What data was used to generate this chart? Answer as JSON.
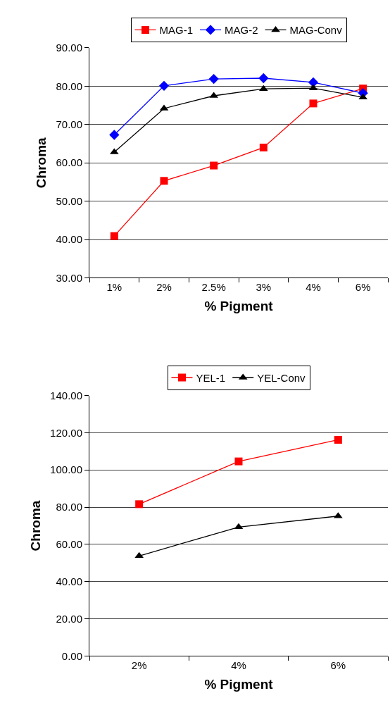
{
  "chart_data": [
    {
      "type": "line",
      "xlabel": "% Pigment",
      "ylabel": "Chroma",
      "categories": [
        "1%",
        "2%",
        "2.5%",
        "3%",
        "4%",
        "6%"
      ],
      "series": [
        {
          "name": "MAG-1",
          "color": "#ff0000",
          "marker": "square",
          "values": [
            40.9,
            55.3,
            59.3,
            64.0,
            75.5,
            79.4
          ]
        },
        {
          "name": "MAG-2",
          "color": "#0000ff",
          "marker": "diamond",
          "values": [
            67.3,
            80.1,
            81.9,
            82.1,
            81.0,
            78.2
          ]
        },
        {
          "name": "MAG-Conv",
          "color": "#000000",
          "marker": "triangle",
          "values": [
            62.8,
            74.2,
            77.5,
            79.3,
            79.5,
            77.1
          ]
        }
      ],
      "ylim": [
        30,
        90
      ],
      "yticks": [
        {
          "value": 30,
          "label": "30.00"
        },
        {
          "value": 40,
          "label": "40.00"
        },
        {
          "value": 50,
          "label": "50.00"
        },
        {
          "value": 60,
          "label": "60.00"
        },
        {
          "value": 70,
          "label": "70.00"
        },
        {
          "value": 80,
          "label": "80.00"
        },
        {
          "value": 90,
          "label": "90.00"
        }
      ],
      "grid": "y",
      "legend": "top",
      "line_style": "solid"
    },
    {
      "type": "line",
      "xlabel": "% Pigment",
      "ylabel": "Chroma",
      "categories": [
        "2%",
        "4%",
        "6%"
      ],
      "series": [
        {
          "name": "YEL-1",
          "color": "#ff0000",
          "marker": "square",
          "values": [
            81.6,
            104.6,
            116.2
          ]
        },
        {
          "name": "YEL-Conv",
          "color": "#000000",
          "marker": "triangle",
          "values": [
            53.8,
            69.3,
            75.2
          ]
        }
      ],
      "ylim": [
        0,
        140
      ],
      "yticks": [
        {
          "value": 0,
          "label": "0.00"
        },
        {
          "value": 20,
          "label": "20.00"
        },
        {
          "value": 40,
          "label": "40.00"
        },
        {
          "value": 60,
          "label": "60.00"
        },
        {
          "value": 80,
          "label": "80.00"
        },
        {
          "value": 100,
          "label": "100.00"
        },
        {
          "value": 120,
          "label": "120.00"
        },
        {
          "value": 140,
          "label": "140.00"
        }
      ],
      "grid": "y",
      "legend": "top",
      "line_style": "solid"
    }
  ]
}
